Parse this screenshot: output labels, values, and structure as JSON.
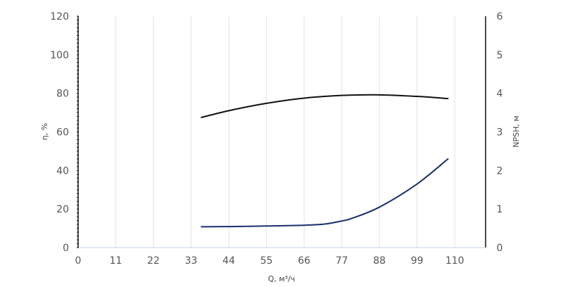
{
  "chart_data": {
    "type": "line",
    "xlabel": "Q, м³/ч",
    "ylabel_left": "η, %",
    "ylabel_right": "NPSH, м",
    "x_ticks": [
      0,
      11,
      22,
      33,
      44,
      55,
      66,
      77,
      88,
      99,
      110
    ],
    "y_left_ticks": [
      0,
      20,
      40,
      60,
      80,
      100,
      120
    ],
    "y_right_ticks": [
      0,
      1,
      2,
      3,
      4,
      5,
      6
    ],
    "xlim": [
      0,
      119
    ],
    "ylim_left": [
      0,
      120
    ],
    "ylim_right": [
      0,
      6
    ],
    "grid": "vertical",
    "series": [
      {
        "axis": "left",
        "color": "#111111",
        "x": [
          36,
          44,
          55,
          66,
          77,
          88,
          99,
          108
        ],
        "y": [
          67.5,
          71,
          74.8,
          77.5,
          78.9,
          79.2,
          78.4,
          77.3
        ]
      },
      {
        "axis": "right",
        "color": "#1c2f6b",
        "x": [
          36,
          44,
          55,
          66,
          72,
          77,
          80,
          88,
          99,
          108
        ],
        "y": [
          0.54,
          0.545,
          0.56,
          0.58,
          0.61,
          0.69,
          0.76,
          1.05,
          1.65,
          2.3
        ]
      }
    ]
  }
}
